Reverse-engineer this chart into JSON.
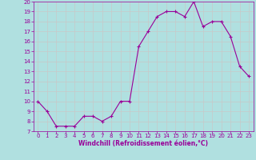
{
  "hours": [
    0,
    1,
    2,
    3,
    4,
    5,
    6,
    7,
    8,
    9,
    10,
    11,
    12,
    13,
    14,
    15,
    16,
    17,
    18,
    19,
    20,
    21,
    22,
    23
  ],
  "temps": [
    10.0,
    9.0,
    7.5,
    7.5,
    7.5,
    8.5,
    8.5,
    8.0,
    8.5,
    10.0,
    10.0,
    15.5,
    17.0,
    18.5,
    19.0,
    19.0,
    18.5,
    20.0,
    17.5,
    18.0,
    18.0,
    16.5,
    13.5,
    12.5
  ],
  "line_color": "#990099",
  "marker": "+",
  "markersize": 3,
  "linewidth": 0.8,
  "markeredgewidth": 0.8,
  "xlabel": "Windchill (Refroidissement éolien,°C)",
  "xlim_min": -0.5,
  "xlim_max": 23.5,
  "ylim_min": 7,
  "ylim_max": 20,
  "yticks": [
    7,
    8,
    9,
    10,
    11,
    12,
    13,
    14,
    15,
    16,
    17,
    18,
    19,
    20
  ],
  "xticks": [
    0,
    1,
    2,
    3,
    4,
    5,
    6,
    7,
    8,
    9,
    10,
    11,
    12,
    13,
    14,
    15,
    16,
    17,
    18,
    19,
    20,
    21,
    22,
    23
  ],
  "bg_color": "#b0e0e0",
  "grid_color": "#c8c8c8",
  "line_axis_color": "#990099",
  "tick_labelsize": 5,
  "xlabel_fontsize": 5.5,
  "xlabel_fontweight": "bold"
}
